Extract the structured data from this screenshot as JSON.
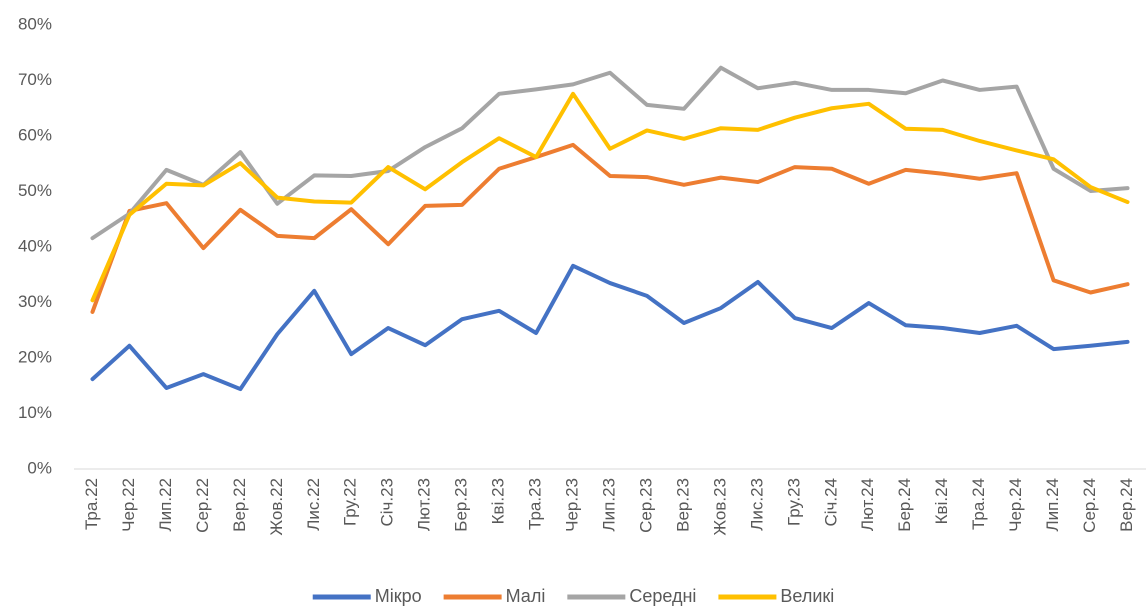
{
  "chart_data": {
    "type": "line",
    "categories": [
      "Тра.22",
      "Чер.22",
      "Лип.22",
      "Сер.22",
      "Вер.22",
      "Жов.22",
      "Лис.22",
      "Гру.22",
      "Січ.23",
      "Лют.23",
      "Бер.23",
      "Кві.23",
      "Тра.23",
      "Чер.23",
      "Лип.23",
      "Сер.23",
      "Вер.23",
      "Жов.23",
      "Лис.23",
      "Гру.23",
      "Січ.24",
      "Лют.24",
      "Бер.24",
      "Кві.24",
      "Тра.24",
      "Чер.24",
      "Лип.24",
      "Сер.24",
      "Вер.24"
    ],
    "series": [
      {
        "name": "Мікро",
        "color": "#4472c4",
        "values": [
          16.2,
          22.2,
          14.6,
          17.1,
          14.4,
          24.3,
          32.1,
          20.7,
          25.4,
          22.3,
          27.0,
          28.5,
          24.5,
          36.6,
          33.5,
          31.2,
          26.3,
          29.0,
          33.7,
          27.2,
          25.4,
          29.9,
          25.9,
          25.4,
          24.5,
          25.8,
          21.6,
          22.2,
          22.9
        ]
      },
      {
        "name": "Малі",
        "color": "#ed7d31",
        "values": [
          28.3,
          46.5,
          47.9,
          39.8,
          46.7,
          42.0,
          41.6,
          46.8,
          40.5,
          47.4,
          47.6,
          54.1,
          56.2,
          58.4,
          52.8,
          52.6,
          51.2,
          52.5,
          51.7,
          54.4,
          54.1,
          51.4,
          53.9,
          53.2,
          52.3,
          53.3,
          34.0,
          31.8,
          33.3
        ]
      },
      {
        "name": "Середні",
        "color": "#a5a5a5",
        "values": [
          41.6,
          46.0,
          53.9,
          51.2,
          57.1,
          47.8,
          52.9,
          52.8,
          53.7,
          58.0,
          61.4,
          67.6,
          68.4,
          69.3,
          71.4,
          65.6,
          64.9,
          72.3,
          68.6,
          69.6,
          68.3,
          68.3,
          67.7,
          70.0,
          68.3,
          68.9,
          54.1,
          50.1,
          50.6
        ]
      },
      {
        "name": "Великі",
        "color": "#ffc000",
        "values": [
          30.4,
          45.8,
          51.4,
          51.1,
          55.1,
          48.9,
          48.2,
          48.0,
          54.4,
          50.4,
          55.3,
          59.6,
          56.2,
          67.6,
          57.7,
          61.0,
          59.5,
          61.4,
          61.1,
          63.3,
          65.0,
          65.8,
          61.3,
          61.1,
          59.1,
          57.4,
          55.8,
          50.8,
          48.1
        ]
      }
    ],
    "ylim": [
      0,
      80
    ],
    "yticks": [
      {
        "value": 0,
        "label": "0%"
      },
      {
        "value": 10,
        "label": "10%"
      },
      {
        "value": 20,
        "label": "20%"
      },
      {
        "value": 30,
        "label": "30%"
      },
      {
        "value": 40,
        "label": "40%"
      },
      {
        "value": 50,
        "label": "50%"
      },
      {
        "value": 60,
        "label": "60%"
      },
      {
        "value": 70,
        "label": "70%"
      },
      {
        "value": 80,
        "label": "80%"
      }
    ],
    "grid": false,
    "legend": "bottom"
  }
}
